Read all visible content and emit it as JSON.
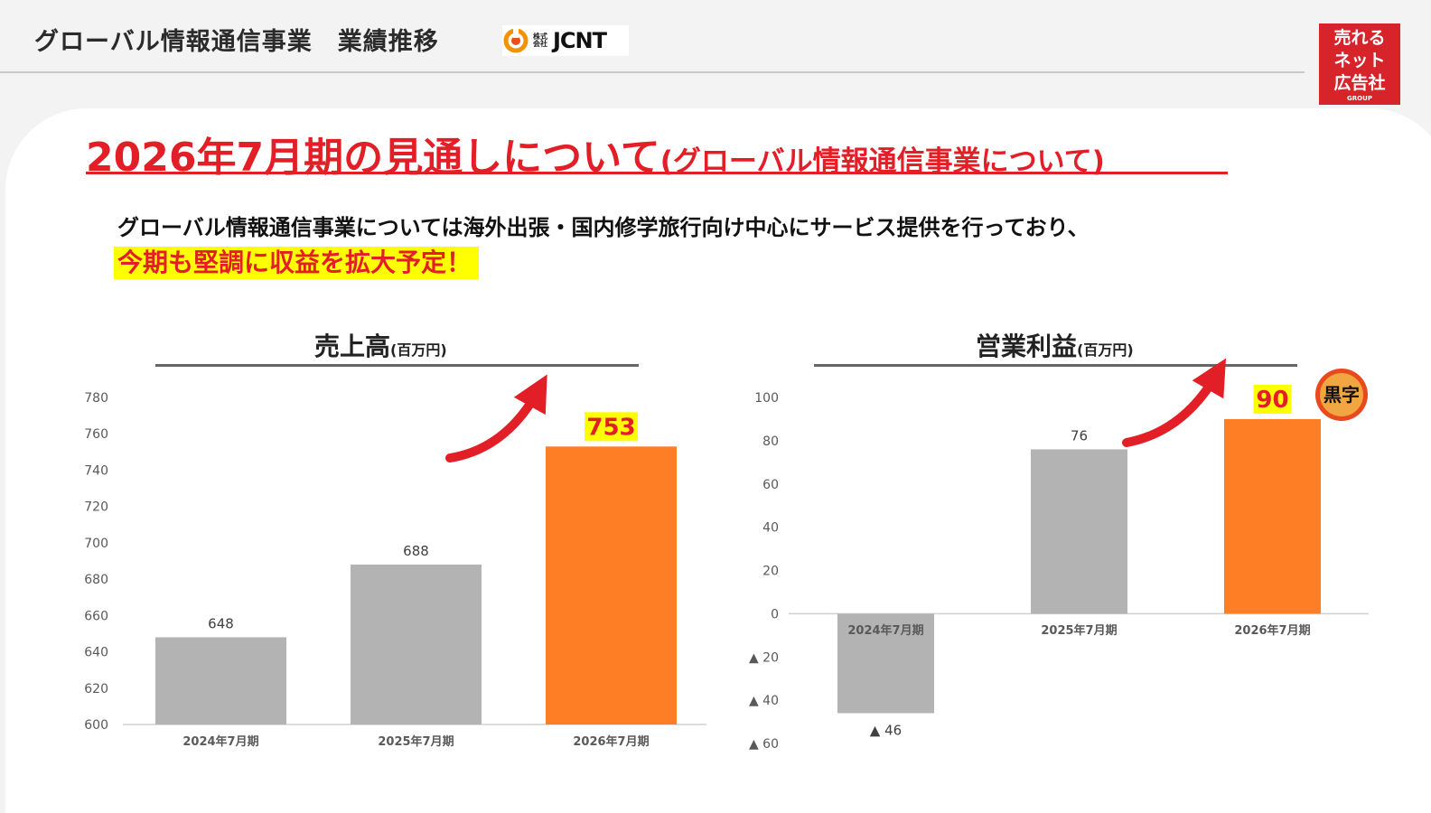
{
  "header": {
    "title": "グローバル情報通信事業　業績推移",
    "logo": {
      "prefix": "株式会社",
      "name": "JCNT"
    },
    "brand_badge": {
      "lines": [
        "売れる",
        "ネット",
        "広告社"
      ],
      "sub": "GROUP"
    }
  },
  "headline": {
    "main": "2026年7月期の見通しについて",
    "sub": "(グローバル情報通信事業について)"
  },
  "lead": {
    "line1": "グローバル情報通信事業については海外出張・国内修学旅行向け中心にサービス提供を行っており、",
    "line2": "今期も堅調に収益を拡大予定！"
  },
  "charts": {
    "sales": {
      "title": "売上高",
      "unit": "(百万円)"
    },
    "profit": {
      "title": "営業利益",
      "unit": "(百万円)"
    }
  },
  "stamp_text": "黒字",
  "colors": {
    "past": "#b3b3b3",
    "forecast": "#fd7e25",
    "accent": "#e21f26",
    "highlight": "#ffff00"
  },
  "chart_data": [
    {
      "type": "bar",
      "title": "売上高",
      "unit": "(百万円)",
      "categories": [
        "2024年7月期",
        "2025年7月期",
        "2026年7月期"
      ],
      "values": [
        648,
        688,
        753
      ],
      "labels": [
        "648",
        "688",
        "753"
      ],
      "ylim": [
        600,
        780
      ],
      "yticks": [
        600,
        620,
        640,
        660,
        680,
        700,
        720,
        740,
        760,
        780
      ],
      "ytick_labels": [
        "600",
        "620",
        "640",
        "660",
        "680",
        "700",
        "720",
        "740",
        "760",
        "780"
      ],
      "highlight_index": 2,
      "grid": false
    },
    {
      "type": "bar",
      "title": "営業利益",
      "unit": "(百万円)",
      "categories": [
        "2024年7月期",
        "2025年7月期",
        "2026年7月期"
      ],
      "values": [
        -46,
        76,
        90
      ],
      "labels": [
        "▲ 46",
        "76",
        "90"
      ],
      "ylim": [
        -60,
        100
      ],
      "yticks": [
        100,
        80,
        60,
        40,
        20,
        0,
        -20,
        -40,
        -60
      ],
      "ytick_labels": [
        "100",
        "80",
        "60",
        "40",
        "20",
        "0",
        "▲ 20",
        "▲ 40",
        "▲ 60"
      ],
      "highlight_index": 2,
      "grid": false
    }
  ]
}
